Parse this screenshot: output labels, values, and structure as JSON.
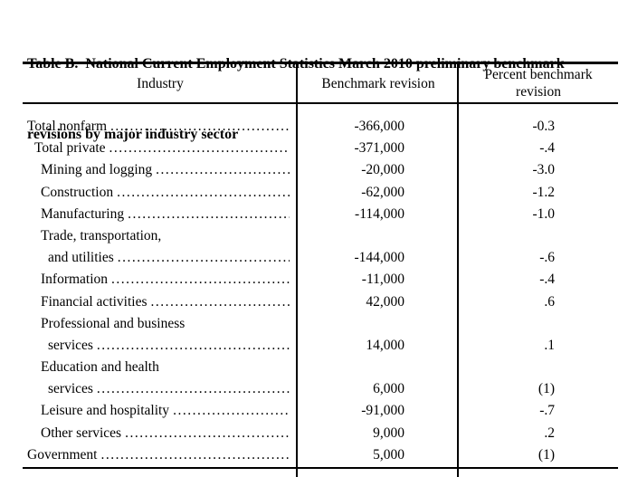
{
  "title": {
    "line1": "Table B.  National Current Employment Statistics March 2010 preliminary benchmark",
    "line2": "revisions by major industry sector"
  },
  "table": {
    "columns": {
      "industry": "Industry",
      "revision": "Benchmark revision",
      "percent": "Percent benchmark revision"
    },
    "rows": [
      {
        "label": "Total nonfarm",
        "indent": 0,
        "leader": true,
        "revision": "-366,000",
        "percent": "-0.3"
      },
      {
        "label": "Total private",
        "indent": 1,
        "leader": true,
        "revision": "-371,000",
        "percent": "-.4"
      },
      {
        "label": "Mining and logging",
        "indent": 2,
        "leader": true,
        "revision": "-20,000",
        "percent": "-3.0"
      },
      {
        "label": "Construction",
        "indent": 2,
        "leader": true,
        "revision": "-62,000",
        "percent": "-1.2"
      },
      {
        "label": "Manufacturing",
        "indent": 2,
        "leader": true,
        "revision": "-114,000",
        "percent": "-1.0"
      },
      {
        "label": "Trade, transportation,",
        "indent": 2,
        "leader": false,
        "revision": "",
        "percent": ""
      },
      {
        "label": "and utilities",
        "indent": 3,
        "leader": true,
        "revision": "-144,000",
        "percent": "-.6"
      },
      {
        "label": "Information",
        "indent": 2,
        "leader": true,
        "revision": "-11,000",
        "percent": "-.4"
      },
      {
        "label": "Financial activities",
        "indent": 2,
        "leader": true,
        "revision": "42,000",
        "percent": ".6"
      },
      {
        "label": "Professional and business",
        "indent": 2,
        "leader": false,
        "revision": "",
        "percent": ""
      },
      {
        "label": "services",
        "indent": 3,
        "leader": true,
        "revision": "14,000",
        "percent": ".1"
      },
      {
        "label": "Education and health",
        "indent": 2,
        "leader": false,
        "revision": "",
        "percent": ""
      },
      {
        "label": "services",
        "indent": 3,
        "leader": true,
        "revision": "6,000",
        "percent": "(1)"
      },
      {
        "label": "Leisure and hospitality",
        "indent": 2,
        "leader": true,
        "revision": "-91,000",
        "percent": "-.7"
      },
      {
        "label": "Other services",
        "indent": 2,
        "leader": true,
        "revision": "9,000",
        "percent": ".2"
      },
      {
        "label": "Government",
        "indent": 0,
        "leader": true,
        "revision": "5,000",
        "percent": "(1)"
      }
    ]
  },
  "colors": {
    "text": "#000000",
    "border": "#000000",
    "background": "#ffffff"
  }
}
